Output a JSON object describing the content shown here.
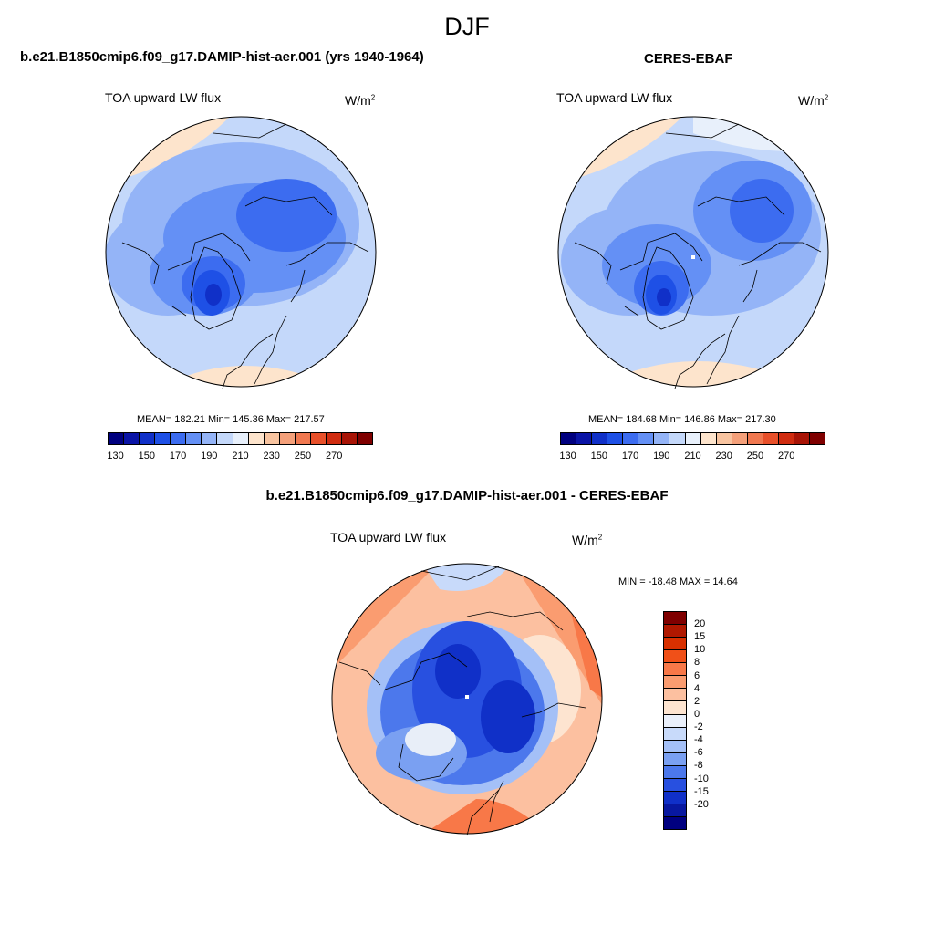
{
  "figure": {
    "title": "DJF"
  },
  "panels": [
    {
      "id": "model",
      "title": "b.e21.B1850cmip6.f09_g17.DAMIP-hist-aer.001 (yrs 1940-1964)",
      "variable": "TOA upward LW flux",
      "units": "W/m",
      "units_exponent": "2",
      "stats_text": "MEAN= 182.21  Min= 145.36  Max= 217.57",
      "stats": {
        "mean": 182.21,
        "min": 145.36,
        "max": 217.57
      }
    },
    {
      "id": "obs",
      "title": "CERES-EBAF",
      "variable": "TOA upward LW flux",
      "units": "W/m",
      "units_exponent": "2",
      "stats_text": "MEAN= 184.68  Min= 146.86  Max= 217.30",
      "stats": {
        "mean": 184.68,
        "min": 146.86,
        "max": 217.3
      }
    },
    {
      "id": "diff",
      "title": "b.e21.B1850cmip6.f09_g17.DAMIP-hist-aer.001 - CERES-EBAF",
      "variable": "TOA upward LW flux",
      "units": "W/m",
      "units_exponent": "2",
      "stats_text": "MIN = -18.48 MAX =  14.64",
      "stats": {
        "min": -18.48,
        "max": 14.64
      }
    }
  ],
  "colorbar_abs": {
    "colors": [
      "#00007f",
      "#0a14a6",
      "#1030c8",
      "#1e50e6",
      "#3c6cf0",
      "#6490f5",
      "#94b4f7",
      "#c4d8fa",
      "#e8f0fb",
      "#fde4cc",
      "#f8c4a0",
      "#f4a07a",
      "#f07850",
      "#e8502a",
      "#d02c10",
      "#a81406",
      "#7f0000"
    ],
    "tick_labels": [
      "130",
      "150",
      "170",
      "190",
      "210",
      "230",
      "250",
      "270"
    ]
  },
  "colorbar_diff": {
    "colors": [
      "#7f0000",
      "#b01800",
      "#d83000",
      "#f05018",
      "#f87848",
      "#fa9c70",
      "#fcc0a0",
      "#fde4d0",
      "#eaf0fb",
      "#c8dafa",
      "#a4c0f7",
      "#7aa0f2",
      "#4c78ec",
      "#2850e0",
      "#1030c8",
      "#0818a0",
      "#000080"
    ],
    "tick_labels": [
      "20",
      "15",
      "10",
      "8",
      "6",
      "4",
      "2",
      "0",
      "-2",
      "-4",
      "-6",
      "-8",
      "-10",
      "-15",
      "-20"
    ]
  }
}
